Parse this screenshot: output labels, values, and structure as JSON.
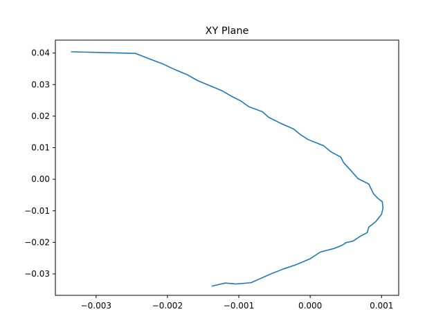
{
  "chart_data": {
    "type": "line",
    "title": "XY Plane",
    "xlabel": "",
    "ylabel": "",
    "xlim": [
      -0.00357,
      0.00124
    ],
    "ylim": [
      -0.0368,
      0.0441
    ],
    "grid": false,
    "legend": "none",
    "x_ticks": [
      -0.003,
      -0.002,
      -0.001,
      0.0,
      0.001
    ],
    "x_tick_labels": [
      "−0.003",
      "−0.002",
      "−0.001",
      "0.000",
      "0.001"
    ],
    "y_ticks": [
      0.04,
      0.03,
      0.02,
      0.01,
      0.0,
      -0.01,
      -0.02,
      -0.03
    ],
    "y_tick_labels": [
      "0.04",
      "0.03",
      "0.02",
      "0.01",
      "0.00",
      "−0.01",
      "−0.02",
      "−0.03"
    ],
    "line_color": "#1f77b4",
    "series": [
      {
        "x": [
          -0.00335,
          -0.00245,
          -0.00228,
          -0.00207,
          -0.0019,
          -0.00172,
          -0.00158,
          -0.00142,
          -0.00124,
          -0.00111,
          -0.00097,
          -0.00086,
          -0.00067,
          -0.00058,
          -0.00042,
          -0.00023,
          -0.00014,
          -3e-05,
          0.00019,
          0.00029,
          0.00043,
          0.00047,
          0.00054,
          0.00067,
          0.00082,
          0.00089,
          0.00095,
          0.00101,
          0.00102,
          0.001,
          0.00092,
          0.00082,
          0.0008,
          0.0007,
          0.0006,
          0.0005,
          0.00045,
          0.00034,
          0.00014,
          0.0,
          -0.0002,
          -0.00037,
          -0.00053,
          -0.00073,
          -0.00083,
          -0.00104,
          -0.00119,
          -0.00138
        ],
        "y": [
          0.0404,
          0.0399,
          0.0384,
          0.0366,
          0.0348,
          0.0331,
          0.0313,
          0.0298,
          0.0281,
          0.0264,
          0.0248,
          0.023,
          0.0214,
          0.0196,
          0.0178,
          0.0159,
          0.0142,
          0.0126,
          0.0106,
          0.0087,
          0.007,
          0.0052,
          0.0035,
          0.0002,
          -0.0015,
          -0.0047,
          -0.0061,
          -0.0071,
          -0.0091,
          -0.0111,
          -0.0134,
          -0.0152,
          -0.0169,
          -0.0181,
          -0.0196,
          -0.0201,
          -0.0209,
          -0.0219,
          -0.0231,
          -0.0252,
          -0.0271,
          -0.0284,
          -0.0298,
          -0.0318,
          -0.0328,
          -0.0332,
          -0.0329,
          -0.0339
        ]
      }
    ]
  }
}
